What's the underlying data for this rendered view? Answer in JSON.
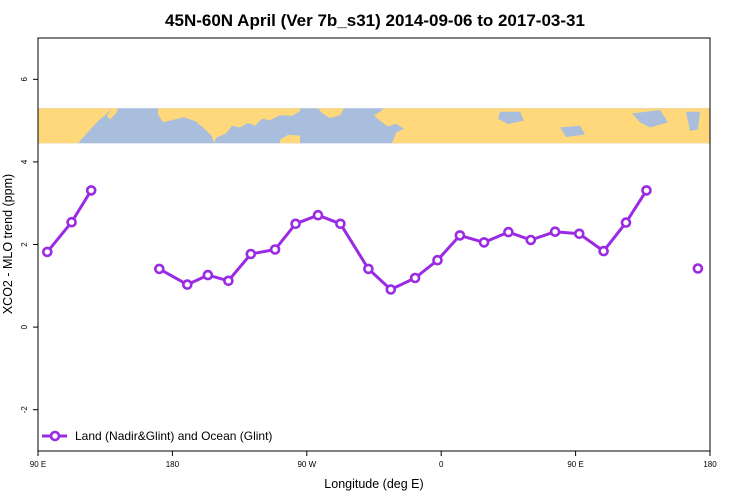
{
  "chart_data": {
    "type": "line",
    "title": "45N-60N April (Ver 7b_s31)   2014-09-06 to 2017-03-31",
    "xlabel": "Longitude (deg E)",
    "ylabel": "XCO2 - MLO trend (ppm)",
    "xlim": [
      90,
      450
    ],
    "ylim": [
      -3,
      7
    ],
    "x_ticks": [
      {
        "value": 90,
        "label": "90 E"
      },
      {
        "value": 162,
        "label": "180"
      },
      {
        "value": 234,
        "label": "90 W"
      },
      {
        "value": 306,
        "label": "0"
      },
      {
        "value": 378,
        "label": "90 E"
      },
      {
        "value": 450,
        "label": "180"
      }
    ],
    "y_ticks": [
      {
        "value": -2,
        "label": "-2"
      },
      {
        "value": 0,
        "label": "0"
      },
      {
        "value": 2,
        "label": "2"
      },
      {
        "value": 4,
        "label": "4"
      },
      {
        "value": 6,
        "label": "6"
      }
    ],
    "grid": false,
    "legend_position": "bottom-left",
    "map_strip": {
      "y_range": [
        4.45,
        5.3
      ],
      "ocean_color": "#a8bedc",
      "land_color": "#fed87a"
    },
    "series": [
      {
        "name": "Land (Nadir&Glint) and Ocean (Glint)",
        "color": "#9a2be2",
        "segments": [
          [
            [
              95,
              1.82
            ],
            [
              108,
              2.54
            ],
            [
              118.5,
              3.31
            ]
          ],
          [
            [
              155,
              1.41
            ],
            [
              170,
              1.03
            ],
            [
              181,
              1.26
            ],
            [
              192,
              1.12
            ],
            [
              204,
              1.77
            ],
            [
              217,
              1.88
            ],
            [
              228,
              2.5
            ],
            [
              240,
              2.71
            ],
            [
              252,
              2.5
            ],
            [
              267,
              1.41
            ],
            [
              279,
              0.91
            ],
            [
              292,
              1.19
            ],
            [
              304,
              1.62
            ],
            [
              316,
              2.22
            ],
            [
              329,
              2.05
            ],
            [
              342,
              2.3
            ],
            [
              354,
              2.11
            ],
            [
              367,
              2.31
            ],
            [
              380,
              2.26
            ],
            [
              393,
              1.84
            ],
            [
              405,
              2.53
            ],
            [
              416,
              3.31
            ]
          ],
          [
            [
              443.5,
              1.42
            ]
          ]
        ]
      }
    ]
  }
}
